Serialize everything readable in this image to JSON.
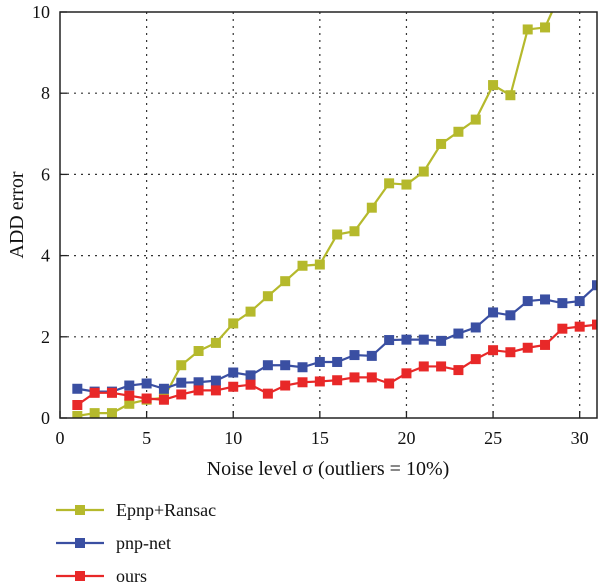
{
  "chart_data": {
    "type": "line",
    "title": "",
    "xlabel": "Noise level σ (outliers = 10%)",
    "ylabel": "ADD error",
    "xlim": [
      0,
      31
    ],
    "ylim": [
      0,
      10
    ],
    "xticks": [
      0,
      5,
      10,
      15,
      20,
      25,
      30
    ],
    "yticks": [
      0,
      2,
      4,
      6,
      8,
      10
    ],
    "grid": true,
    "legend_position": "bottom-left, outside below plot",
    "x": [
      1,
      2,
      3,
      4,
      5,
      6,
      7,
      8,
      9,
      10,
      11,
      12,
      13,
      14,
      15,
      16,
      17,
      18,
      19,
      20,
      21,
      22,
      23,
      24,
      25,
      26,
      27,
      28,
      29,
      30,
      31
    ],
    "series": [
      {
        "name": "Epnp+Ransac",
        "color": "#b5b92c",
        "values": [
          0.05,
          0.12,
          0.12,
          0.35,
          0.45,
          0.5,
          1.3,
          1.65,
          1.85,
          2.33,
          2.62,
          3.0,
          3.37,
          3.75,
          3.78,
          4.52,
          4.6,
          5.18,
          5.78,
          5.75,
          6.07,
          6.75,
          7.05,
          7.35,
          8.2,
          7.95,
          9.57,
          9.62,
          null,
          null,
          null
        ]
      },
      {
        "name": "pnp-net",
        "color": "#3a4fa2",
        "values": [
          0.72,
          0.65,
          0.65,
          0.8,
          0.85,
          0.72,
          0.87,
          0.88,
          0.92,
          1.12,
          1.05,
          1.3,
          1.3,
          1.25,
          1.38,
          1.38,
          1.55,
          1.53,
          1.92,
          1.93,
          1.93,
          1.9,
          2.08,
          2.23,
          2.6,
          2.53,
          2.88,
          2.92,
          2.83,
          2.88,
          3.27
        ]
      },
      {
        "name": "ours",
        "color": "#e82828",
        "values": [
          0.32,
          0.62,
          0.62,
          0.55,
          0.48,
          0.45,
          0.58,
          0.68,
          0.68,
          0.77,
          0.82,
          0.6,
          0.8,
          0.88,
          0.9,
          0.93,
          1.0,
          1.0,
          0.85,
          1.1,
          1.27,
          1.27,
          1.18,
          1.45,
          1.67,
          1.62,
          1.73,
          1.8,
          2.2,
          2.25,
          2.3
        ]
      }
    ],
    "epnp_tail": {
      "x": [
        28,
        28.4
      ],
      "y": [
        9.62,
        10
      ]
    }
  }
}
